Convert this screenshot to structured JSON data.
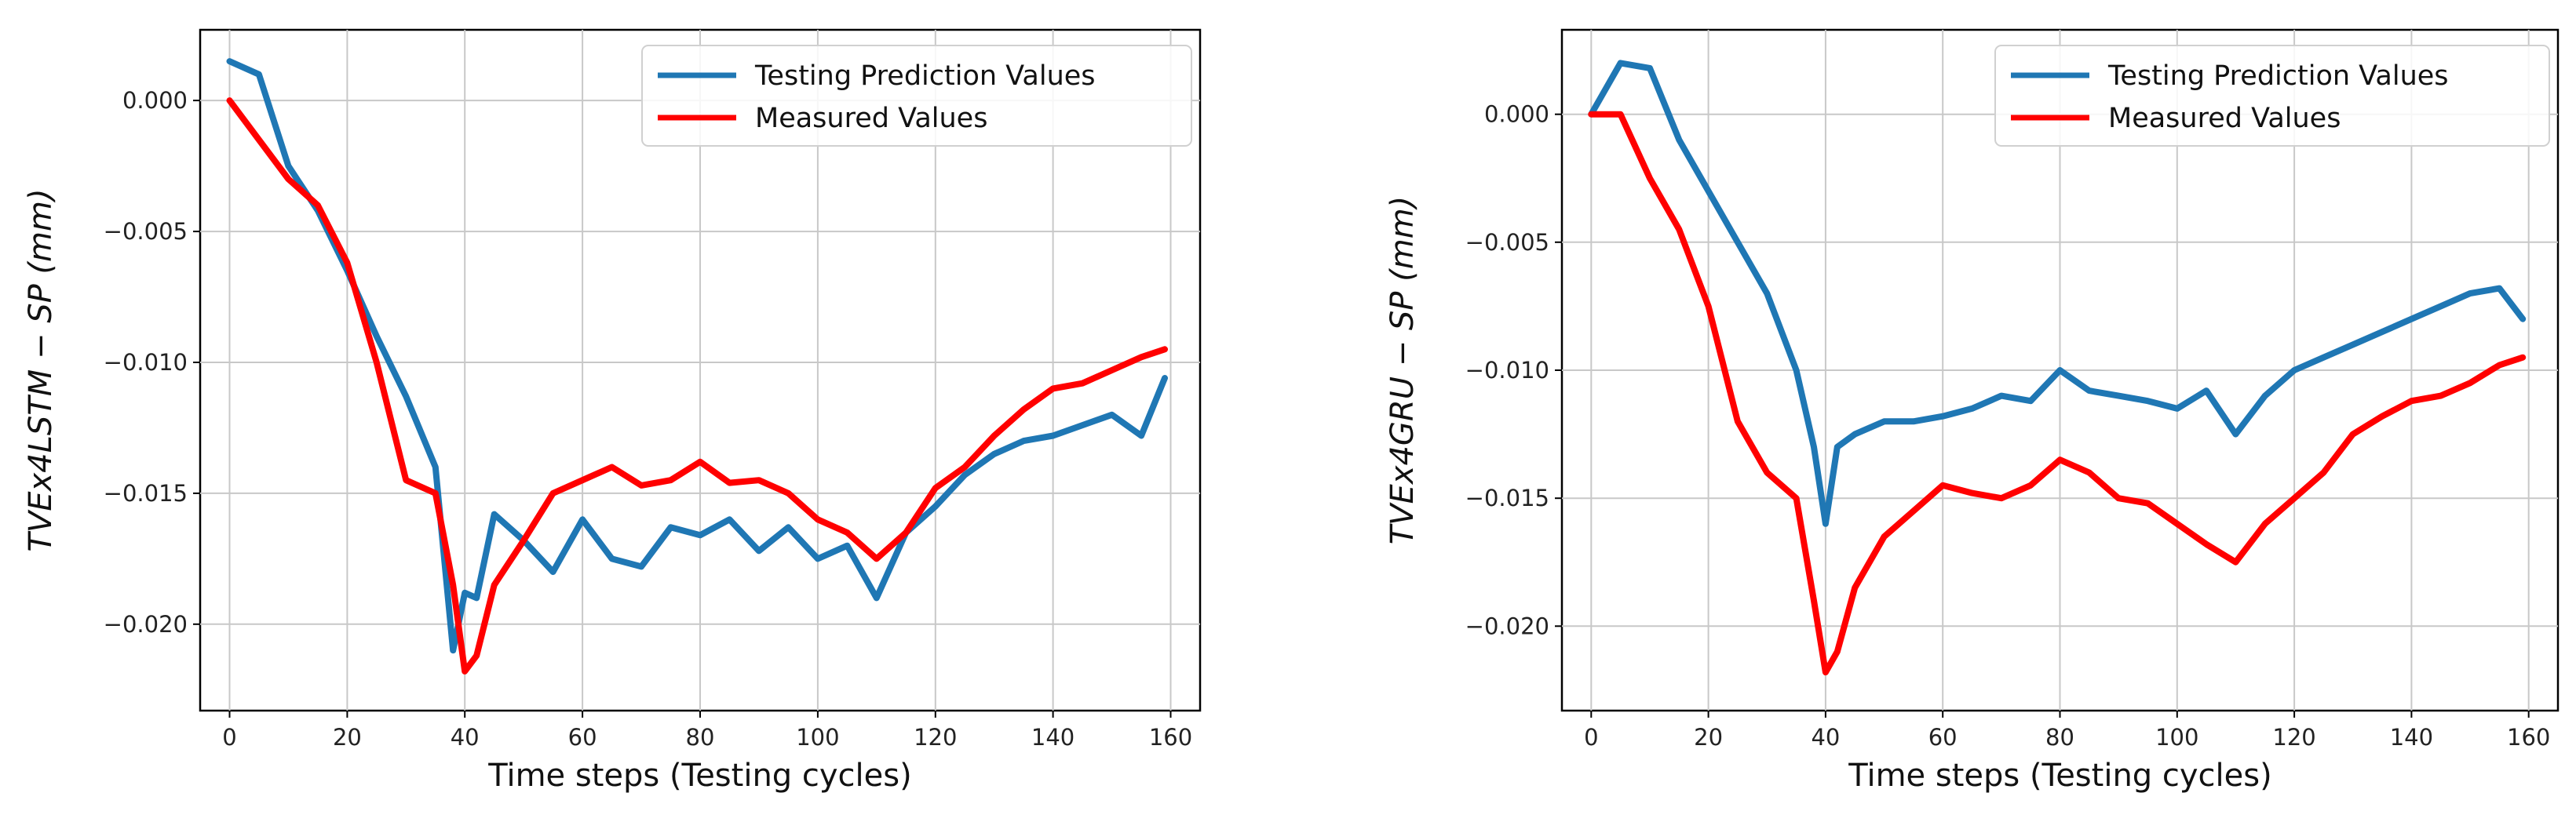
{
  "chart_data": [
    {
      "type": "line",
      "title": "",
      "xlabel": "Time steps (Testing cycles)",
      "ylabel": "TVEx4LSTM − SP (mm)",
      "xlim": [
        -5,
        165
      ],
      "ylim": [
        -0.0233,
        0.0027
      ],
      "xticks": [
        0,
        20,
        40,
        60,
        80,
        100,
        120,
        140,
        160
      ],
      "xtick_labels": [
        "0",
        "20",
        "40",
        "60",
        "80",
        "100",
        "120",
        "140",
        "160"
      ],
      "yticks": [
        0.0,
        -0.005,
        -0.01,
        -0.015,
        -0.02
      ],
      "ytick_labels": [
        "0.000",
        "−0.005",
        "−0.010",
        "−0.015",
        "−0.020"
      ],
      "grid": true,
      "legend": "top-right",
      "x": [
        0,
        5,
        10,
        15,
        20,
        25,
        30,
        35,
        38,
        40,
        42,
        45,
        50,
        55,
        60,
        65,
        70,
        75,
        80,
        85,
        90,
        95,
        100,
        105,
        110,
        115,
        120,
        125,
        130,
        135,
        140,
        145,
        150,
        155,
        159
      ],
      "series": [
        {
          "name": "Testing Prediction Values",
          "color": "#1f77b4",
          "values": [
            0.0015,
            0.001,
            -0.0025,
            -0.0042,
            -0.0065,
            -0.009,
            -0.0113,
            -0.014,
            -0.021,
            -0.0188,
            -0.019,
            -0.0158,
            -0.0168,
            -0.018,
            -0.016,
            -0.0175,
            -0.0178,
            -0.0163,
            -0.0166,
            -0.016,
            -0.0172,
            -0.0163,
            -0.0175,
            -0.017,
            -0.019,
            -0.0165,
            -0.0155,
            -0.0143,
            -0.0135,
            -0.013,
            -0.0128,
            -0.0124,
            -0.012,
            -0.0128,
            -0.0106
          ]
        },
        {
          "name": "Measured Values",
          "color": "#ff0000",
          "values": [
            0.0,
            -0.0015,
            -0.003,
            -0.004,
            -0.0062,
            -0.01,
            -0.0145,
            -0.015,
            -0.0185,
            -0.0218,
            -0.0212,
            -0.0185,
            -0.0168,
            -0.015,
            -0.0145,
            -0.014,
            -0.0147,
            -0.0145,
            -0.0138,
            -0.0146,
            -0.0145,
            -0.015,
            -0.016,
            -0.0165,
            -0.0175,
            -0.0165,
            -0.0148,
            -0.014,
            -0.0128,
            -0.0118,
            -0.011,
            -0.0108,
            -0.0103,
            -0.0098,
            -0.0095
          ]
        }
      ]
    },
    {
      "type": "line",
      "title": "",
      "xlabel": "Time steps (Testing cycles)",
      "ylabel": "TVEx4GRU − SP (mm)",
      "xlim": [
        -5,
        165
      ],
      "ylim": [
        -0.0233,
        0.0033
      ],
      "xticks": [
        0,
        20,
        40,
        60,
        80,
        100,
        120,
        140,
        160
      ],
      "xtick_labels": [
        "0",
        "20",
        "40",
        "60",
        "80",
        "100",
        "120",
        "140",
        "160"
      ],
      "yticks": [
        0.0,
        -0.005,
        -0.01,
        -0.015,
        -0.02
      ],
      "ytick_labels": [
        "0.000",
        "−0.005",
        "−0.010",
        "−0.015",
        "−0.020"
      ],
      "grid": true,
      "legend": "top-right",
      "x": [
        0,
        5,
        10,
        15,
        20,
        25,
        30,
        35,
        38,
        40,
        42,
        45,
        50,
        55,
        60,
        65,
        70,
        75,
        80,
        85,
        90,
        95,
        100,
        105,
        110,
        115,
        120,
        125,
        130,
        135,
        140,
        145,
        150,
        155,
        159
      ],
      "series": [
        {
          "name": "Testing Prediction Values",
          "color": "#1f77b4",
          "values": [
            0.0,
            0.002,
            0.0018,
            -0.001,
            -0.003,
            -0.005,
            -0.007,
            -0.01,
            -0.013,
            -0.016,
            -0.013,
            -0.0125,
            -0.012,
            -0.012,
            -0.0118,
            -0.0115,
            -0.011,
            -0.0112,
            -0.01,
            -0.0108,
            -0.011,
            -0.0112,
            -0.0115,
            -0.0108,
            -0.0125,
            -0.011,
            -0.01,
            -0.0095,
            -0.009,
            -0.0085,
            -0.008,
            -0.0075,
            -0.007,
            -0.0068,
            -0.008
          ]
        },
        {
          "name": "Measured Values",
          "color": "#ff0000",
          "values": [
            0.0,
            0.0,
            -0.0025,
            -0.0045,
            -0.0075,
            -0.012,
            -0.014,
            -0.015,
            -0.019,
            -0.0218,
            -0.021,
            -0.0185,
            -0.0165,
            -0.0155,
            -0.0145,
            -0.0148,
            -0.015,
            -0.0145,
            -0.0135,
            -0.014,
            -0.015,
            -0.0152,
            -0.016,
            -0.0168,
            -0.0175,
            -0.016,
            -0.015,
            -0.014,
            -0.0125,
            -0.0118,
            -0.0112,
            -0.011,
            -0.0105,
            -0.0098,
            -0.0095
          ]
        }
      ]
    }
  ]
}
